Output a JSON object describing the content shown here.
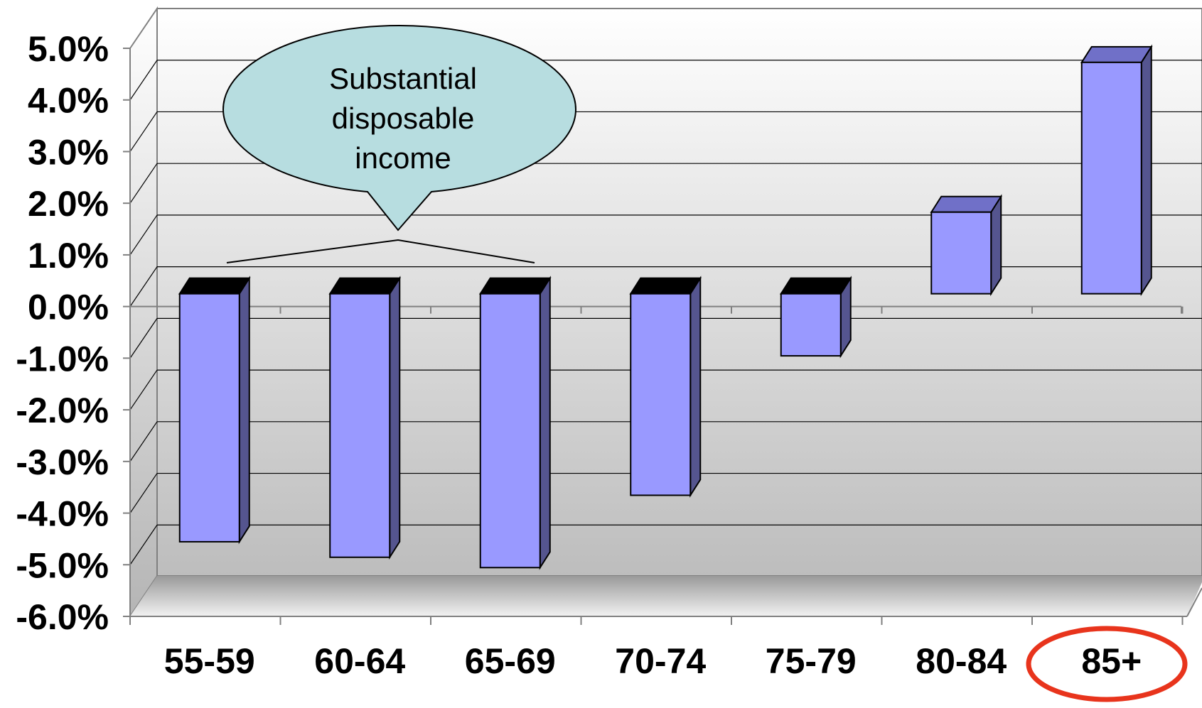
{
  "chart_data": {
    "type": "bar",
    "categories": [
      "55-59",
      "60-64",
      "65-69",
      "70-74",
      "75-79",
      "80-84",
      "85+"
    ],
    "values": [
      -4.5,
      -4.8,
      -5.0,
      -3.6,
      -0.9,
      1.8,
      4.7
    ],
    "ylim": [
      -6.0,
      5.0
    ],
    "yticks": [
      "5.0%",
      "4.0%",
      "3.0%",
      "2.0%",
      "1.0%",
      "0.0%",
      "-1.0%",
      "-2.0%",
      "-3.0%",
      "-4.0%",
      "-5.0%",
      "-6.0%"
    ],
    "title": "",
    "xlabel": "",
    "ylabel": "",
    "grid": true,
    "style": "3d-column",
    "colors": {
      "bar_front": "#9999ff",
      "bar_side": "#55558f",
      "bar_top_negative": "#000000",
      "bar_top_positive": "#7070c8",
      "callout_fill": "#b7dde0",
      "highlight_ring": "#e8341c"
    },
    "annotation": {
      "lines": [
        "Substantial",
        "disposable",
        "income"
      ],
      "covers_categories": [
        "55-59",
        "60-64",
        "65-69"
      ]
    },
    "highlighted_category": "85+"
  }
}
